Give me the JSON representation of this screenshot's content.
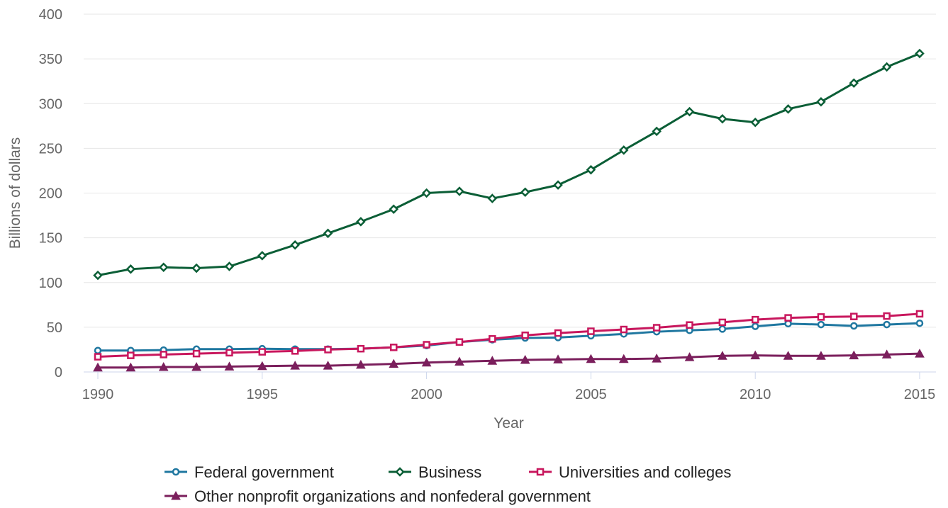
{
  "chart_data": {
    "type": "line",
    "title": "",
    "xlabel": "Year",
    "ylabel": "Billions of dollars",
    "xlim": [
      1990,
      2015
    ],
    "ylim": [
      0,
      400
    ],
    "x_ticks": [
      1990,
      1995,
      2000,
      2005,
      2010,
      2015
    ],
    "y_ticks": [
      0,
      50,
      100,
      150,
      200,
      250,
      300,
      350,
      400
    ],
    "grid": "horizontal",
    "legend_position": "bottom",
    "x": [
      1990,
      1991,
      1992,
      1993,
      1994,
      1995,
      1996,
      1997,
      1998,
      1999,
      2000,
      2001,
      2002,
      2003,
      2004,
      2005,
      2006,
      2007,
      2008,
      2009,
      2010,
      2011,
      2012,
      2013,
      2014,
      2015
    ],
    "series": [
      {
        "name": "Federal government",
        "color": "#1f77a0",
        "marker": "circle",
        "values": [
          24,
          24,
          24.5,
          25.5,
          25.5,
          26,
          25.5,
          25.5,
          26,
          27.5,
          29.5,
          33.5,
          36,
          38,
          38.5,
          40.5,
          42.5,
          45,
          46.5,
          48,
          51,
          54,
          53,
          51.5,
          53,
          54.5
        ]
      },
      {
        "name": "Business",
        "color": "#0b5e36",
        "marker": "diamond",
        "values": [
          108,
          115,
          117,
          116,
          118,
          130,
          142,
          155,
          168,
          182,
          200,
          202,
          194,
          201,
          209,
          226,
          248,
          269,
          291,
          283,
          279,
          294,
          302,
          323,
          341,
          356
        ]
      },
      {
        "name": "Universities and colleges",
        "color": "#c8175d",
        "marker": "square",
        "values": [
          17,
          18.5,
          19.5,
          20.5,
          21.5,
          22.5,
          23.5,
          25,
          26,
          27.5,
          30.5,
          33.5,
          37,
          41,
          43.5,
          45.5,
          47.5,
          49.5,
          52.5,
          55.5,
          58.5,
          60.5,
          61.5,
          62,
          62.5,
          65
        ]
      },
      {
        "name": "Other nonprofit organizations and nonfederal government",
        "color": "#7b1f5c",
        "marker": "triangle",
        "values": [
          5,
          5,
          5.5,
          5.5,
          6,
          6.5,
          7,
          7,
          8,
          9,
          10.5,
          11.5,
          12.5,
          13.5,
          14,
          14.5,
          14.5,
          15,
          16.5,
          18,
          18.5,
          18,
          18,
          18.5,
          19.5,
          20.5
        ]
      }
    ]
  }
}
